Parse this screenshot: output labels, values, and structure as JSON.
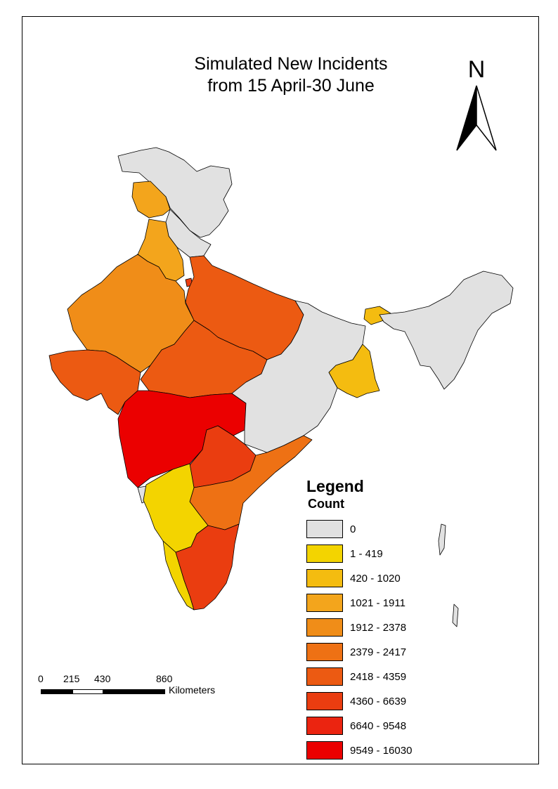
{
  "title_line1": "Simulated New Incidents",
  "title_line2": "from 15 April-30 June",
  "north_arrow": {
    "letter": "N",
    "icon": "north-arrow-icon"
  },
  "legend": {
    "title": "Legend",
    "subtitle": "Count",
    "items": [
      {
        "label": "0",
        "color": "#e1e1e1"
      },
      {
        "label": "1 - 419",
        "color": "#f3d400"
      },
      {
        "label": "420 - 1020",
        "color": "#f4bc10"
      },
      {
        "label": "1021 - 1911",
        "color": "#f3a51c"
      },
      {
        "label": "1912 - 2378",
        "color": "#f08d18"
      },
      {
        "label": "2379 - 2417",
        "color": "#ee7114"
      },
      {
        "label": "2418 - 4359",
        "color": "#ec5a12"
      },
      {
        "label": "4360 - 6639",
        "color": "#ea3d10"
      },
      {
        "label": "6640 - 9548",
        "color": "#eb2410"
      },
      {
        "label": "9549 - 16030",
        "color": "#eb0000"
      }
    ]
  },
  "scale_bar": {
    "ticks": [
      "0",
      "215",
      "430",
      "860"
    ],
    "unit": "Kilometers"
  }
}
